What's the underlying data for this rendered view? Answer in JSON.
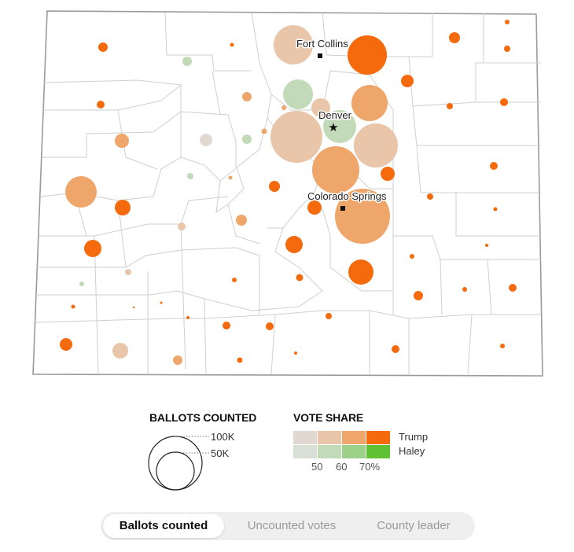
{
  "cities": [
    {
      "name": "Fort Collins",
      "marker": "square"
    },
    {
      "name": "Denver",
      "marker": "star"
    },
    {
      "name": "Colorado Springs",
      "marker": "square"
    }
  ],
  "legend": {
    "size_title": "BALLOTS COUNTED",
    "size_levels": [
      {
        "label": "100K",
        "value": 100000
      },
      {
        "label": "50K",
        "value": 50000
      }
    ],
    "share_title": "VOTE SHARE",
    "candidates": [
      {
        "name": "Trump",
        "colors": [
          "#e2d8d2",
          "#e9c5aa",
          "#eea66b",
          "#f46a0c"
        ]
      },
      {
        "name": "Haley",
        "colors": [
          "#d8dfd5",
          "#c3dab8",
          "#9dd18a",
          "#60c232"
        ]
      }
    ],
    "ticks": [
      "50",
      "60",
      "70%"
    ]
  },
  "toggle": {
    "options": [
      "Ballots counted",
      "Uncounted votes",
      "County leader"
    ],
    "active": 0
  },
  "colors": {
    "border": "#c8c8c8",
    "outline": "#9a9a9a"
  }
}
